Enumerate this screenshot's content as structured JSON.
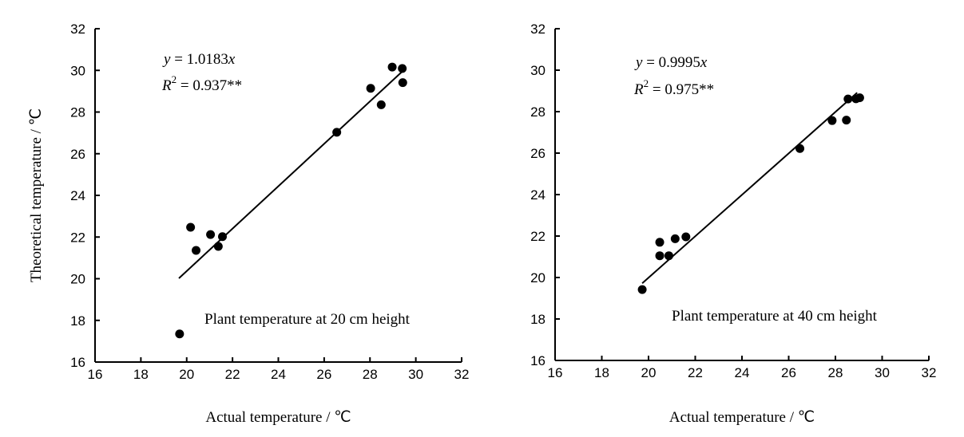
{
  "chart_data": [
    {
      "type": "scatter",
      "annotation": "Plant temperature at 20 cm height",
      "equation": {
        "y": "y",
        "rest": " = 1.0183",
        "x": "x"
      },
      "r2": {
        "r": "R",
        "sup": "2",
        "rest": " = 0.937**"
      },
      "slope": 1.0183,
      "fit_range": [
        19.66,
        29.4
      ],
      "xlabel": "Actual temperature / ℃",
      "ylabel": "Theoretical temperature / ℃",
      "xlim": [
        16,
        32
      ],
      "ylim": [
        16,
        32
      ],
      "xticks": [
        "16",
        "18",
        "20",
        "22",
        "24",
        "26",
        "28",
        "30",
        "32"
      ],
      "yticks": [
        "16",
        "18",
        "20",
        "22",
        "24",
        "26",
        "28",
        "30",
        "32"
      ],
      "points": [
        [
          19.69,
          17.35
        ],
        [
          20.17,
          22.47
        ],
        [
          20.41,
          21.36
        ],
        [
          21.04,
          22.12
        ],
        [
          21.38,
          21.55
        ],
        [
          21.56,
          22.02
        ],
        [
          26.55,
          27.03
        ],
        [
          28.03,
          29.14
        ],
        [
          28.49,
          28.35
        ],
        [
          28.97,
          30.16
        ],
        [
          29.41,
          30.09
        ],
        [
          29.43,
          29.41
        ]
      ]
    },
    {
      "type": "scatter",
      "annotation": "Plant temperature at 40 cm height",
      "equation": {
        "y": "y",
        "rest": " = 0.9995",
        "x": "x"
      },
      "r2": {
        "r": "R",
        "sup": "2",
        "rest": " = 0.975**"
      },
      "slope": 0.9995,
      "fit_range": [
        19.73,
        28.93
      ],
      "xlabel": "Actual temperature / ℃",
      "ylabel": "",
      "xlim": [
        16,
        32
      ],
      "ylim": [
        16,
        32
      ],
      "xticks": [
        "16",
        "18",
        "20",
        "22",
        "24",
        "26",
        "28",
        "30",
        "32"
      ],
      "yticks": [
        "16",
        "18",
        "20",
        "22",
        "24",
        "26",
        "28",
        "30",
        "32"
      ],
      "points": [
        [
          19.73,
          19.42
        ],
        [
          20.48,
          21.7
        ],
        [
          20.48,
          21.05
        ],
        [
          20.87,
          21.05
        ],
        [
          21.14,
          21.87
        ],
        [
          21.6,
          21.96
        ],
        [
          26.48,
          26.22
        ],
        [
          27.86,
          27.57
        ],
        [
          28.47,
          27.59
        ],
        [
          28.54,
          28.61
        ],
        [
          28.88,
          28.62
        ],
        [
          29.04,
          28.67
        ]
      ]
    }
  ]
}
